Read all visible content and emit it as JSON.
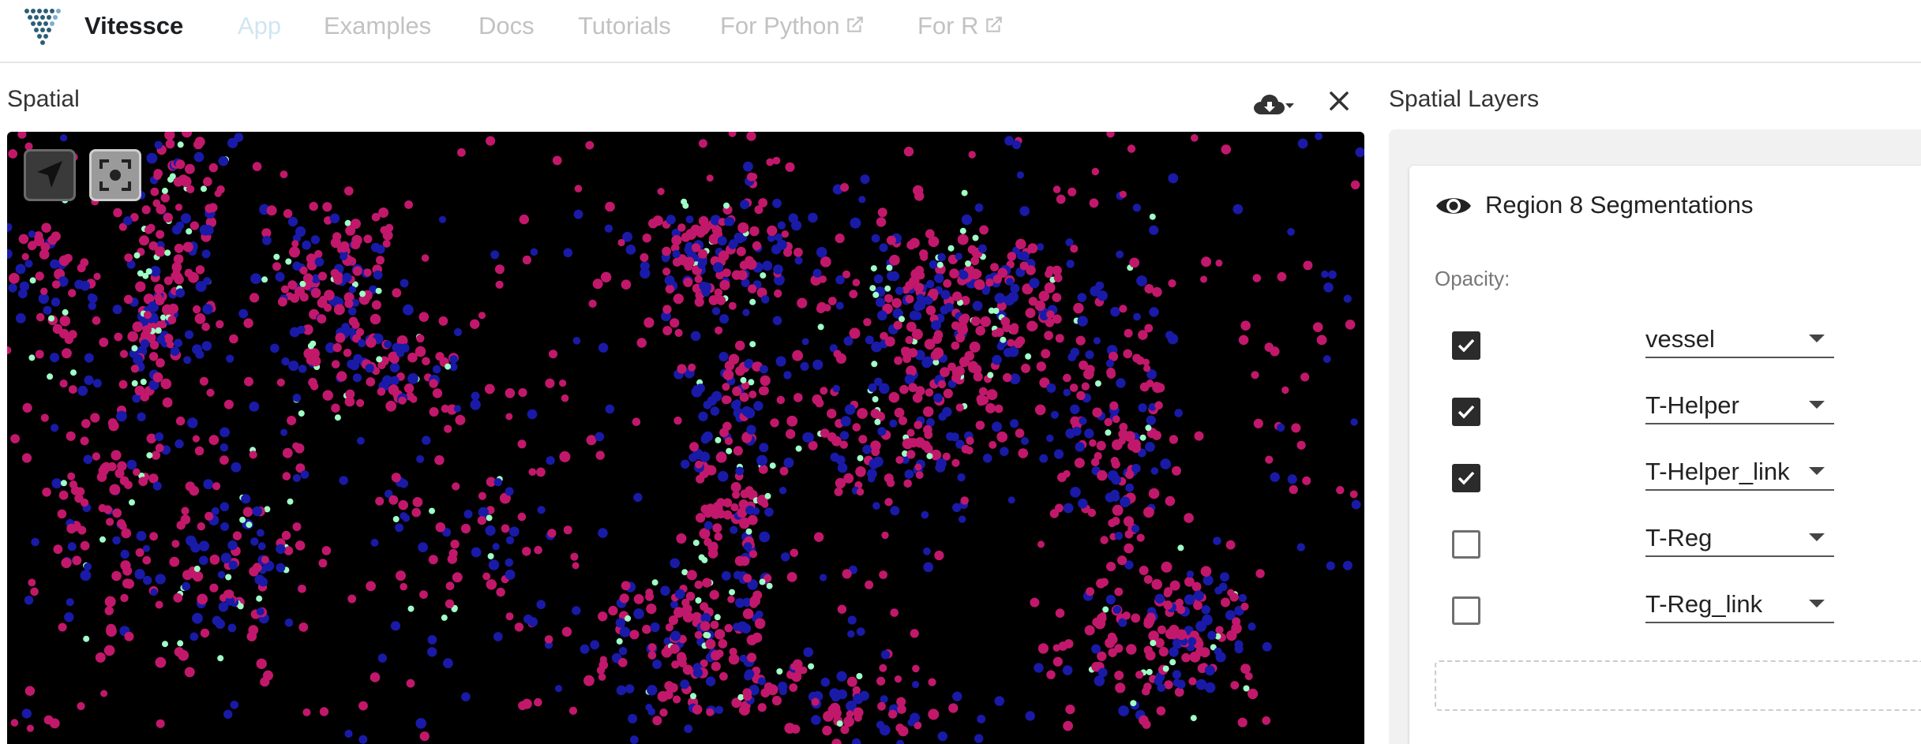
{
  "brand": {
    "name": "Vitessce",
    "logo_icon": "vitessce-logo-icon",
    "logo_color": "#2b5f75"
  },
  "nav": {
    "items": [
      {
        "label": "App",
        "active": true
      },
      {
        "label": "Examples"
      },
      {
        "label": "Docs"
      },
      {
        "label": "Tutorials"
      },
      {
        "label": "For Python",
        "icon": "external-link-icon"
      },
      {
        "label": "For R",
        "icon": "external-link-icon"
      }
    ]
  },
  "spatial": {
    "title": "Spatial",
    "download_icon": "cloud-download-icon",
    "close_icon": "close-icon",
    "tools": {
      "pan_icon": "navigation-arrow-icon",
      "recenter_icon": "recenter-icon"
    },
    "colors": {
      "background": "#000000",
      "cells_a": "#c2186b",
      "cells_b": "#1a1aa8",
      "cells_c": "#9fffc6"
    }
  },
  "layers_panel": {
    "title": "Spatial Layers",
    "layer": {
      "name": "Region 8 Segmentations",
      "visible_icon": "eye-icon",
      "opacity_label": "Opacity:",
      "channels": [
        {
          "checked": true,
          "value": "vessel"
        },
        {
          "checked": true,
          "value": "T-Helper"
        },
        {
          "checked": true,
          "value": "T-Helper_link"
        },
        {
          "checked": false,
          "value": "T-Reg"
        },
        {
          "checked": false,
          "value": "T-Reg_link"
        }
      ]
    }
  }
}
